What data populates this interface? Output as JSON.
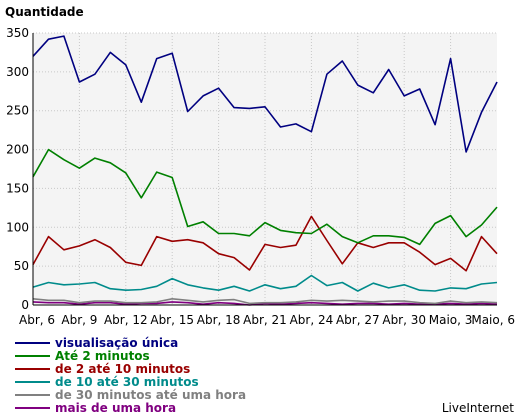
{
  "chart_data": {
    "type": "line",
    "title": "",
    "ylabel": "Quantidade",
    "xlabel": "",
    "ylim": [
      0,
      350
    ],
    "yticks": [
      0,
      50,
      100,
      150,
      200,
      250,
      300,
      350
    ],
    "grid": true,
    "legend_position": "bottom-left",
    "x": [
      "Abr, 6",
      "Abr, 7",
      "Abr, 8",
      "Abr, 9",
      "Abr, 10",
      "Abr, 11",
      "Abr, 12",
      "Abr, 13",
      "Abr, 14",
      "Abr, 15",
      "Abr, 16",
      "Abr, 17",
      "Abr, 18",
      "Abr, 19",
      "Abr, 20",
      "Abr, 21",
      "Abr, 22",
      "Abr, 23",
      "Abr, 24",
      "Abr, 25",
      "Abr, 26",
      "Abr, 27",
      "Abr, 28",
      "Abr, 29",
      "Abr, 30",
      "Maio, 1",
      "Maio, 2",
      "Maio, 3",
      "Maio, 4",
      "Maio, 5",
      "Maio, 6"
    ],
    "x_tick_labels": [
      "Abr, 6",
      "Abr, 9",
      "Abr, 12",
      "Abr, 15",
      "Abr, 18",
      "Abr, 21",
      "Abr, 24",
      "Abr, 27",
      "Abr, 30",
      "Maio, 3",
      "Maio, 6"
    ],
    "series": [
      {
        "name": "visualisação única",
        "color": "#000080",
        "values": [
          320,
          342,
          346,
          287,
          297,
          325,
          309,
          261,
          317,
          324,
          249,
          269,
          279,
          254,
          253,
          255,
          229,
          233,
          223,
          297,
          314,
          283,
          273,
          303,
          269,
          278,
          232,
          317,
          197,
          248,
          287
        ]
      },
      {
        "name": "Até 2 minutos",
        "color": "#008000",
        "values": [
          165,
          200,
          187,
          176,
          189,
          183,
          170,
          138,
          171,
          164,
          101,
          107,
          92,
          92,
          89,
          106,
          96,
          93,
          92,
          104,
          88,
          80,
          89,
          89,
          87,
          78,
          105,
          115,
          88,
          103,
          126
        ]
      },
      {
        "name": "de 2 até 10 minutos",
        "color": "#990000",
        "values": [
          52,
          88,
          71,
          76,
          84,
          74,
          55,
          51,
          88,
          82,
          84,
          80,
          66,
          61,
          45,
          78,
          74,
          77,
          114,
          83,
          53,
          80,
          74,
          80,
          80,
          68,
          52,
          60,
          44,
          88,
          66
        ]
      },
      {
        "name": "de 10 até 30 minutos",
        "color": "#008b8b",
        "values": [
          23,
          29,
          26,
          27,
          29,
          21,
          19,
          20,
          24,
          34,
          26,
          22,
          19,
          24,
          18,
          26,
          21,
          24,
          38,
          25,
          29,
          18,
          28,
          22,
          26,
          19,
          18,
          22,
          21,
          27,
          29
        ]
      },
      {
        "name": "de 30 minutos até uma hora",
        "color": "#808080",
        "values": [
          8,
          6,
          6,
          3,
          5,
          5,
          3,
          3,
          4,
          8,
          6,
          4,
          6,
          7,
          2,
          3,
          3,
          4,
          6,
          5,
          6,
          5,
          4,
          5,
          5,
          3,
          2,
          5,
          3,
          4,
          3
        ]
      },
      {
        "name": "mais de uma hora",
        "color": "#800080",
        "values": [
          4,
          3,
          3,
          1,
          3,
          3,
          1,
          2,
          2,
          4,
          3,
          1,
          3,
          2,
          0,
          2,
          1,
          2,
          3,
          2,
          1,
          2,
          2,
          1,
          2,
          1,
          1,
          2,
          1,
          2,
          1
        ]
      }
    ]
  },
  "footer": {
    "credit": "LiveInternet"
  }
}
